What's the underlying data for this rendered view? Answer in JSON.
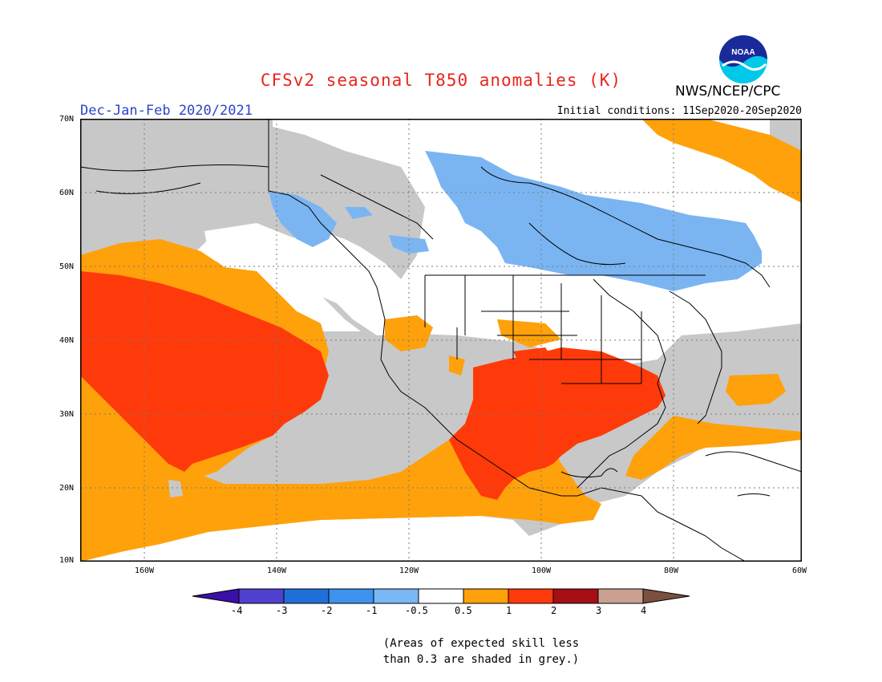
{
  "title": "CFSv2 seasonal T850 anomalies (K)",
  "season_label": "Dec-Jan-Feb 2020/2021",
  "initial_conditions": "Initial conditions: 11Sep2020-20Sep2020",
  "agency": "NWS/NCEP/CPC",
  "logo_text": "NOAA",
  "lat_labels": [
    "70N",
    "60N",
    "50N",
    "40N",
    "30N",
    "20N",
    "10N"
  ],
  "lon_labels": [
    "160W",
    "140W",
    "120W",
    "100W",
    "80W",
    "60W"
  ],
  "colorbar": {
    "labels": [
      "-4",
      "-3",
      "-2",
      "-1",
      "-0.5",
      "0.5",
      "1",
      "2",
      "3",
      "4"
    ],
    "colors": [
      "#3a10a8",
      "#5040d0",
      "#1f6fd8",
      "#3d93ee",
      "#79b8f6",
      "#ffffff",
      "#ffa10a",
      "#ff3a0a",
      "#a50f15",
      "#c9a090",
      "#7a5040"
    ]
  },
  "map_colors": {
    "grey": "#c8c8c8",
    "light_blue": "#7ab5f2",
    "orange": "#ffa10a",
    "red": "#ff3a0a",
    "white": "#ffffff"
  },
  "note_line1": "(Areas of expected skill less",
  "note_line2": "than 0.3 are shaded in grey.)"
}
